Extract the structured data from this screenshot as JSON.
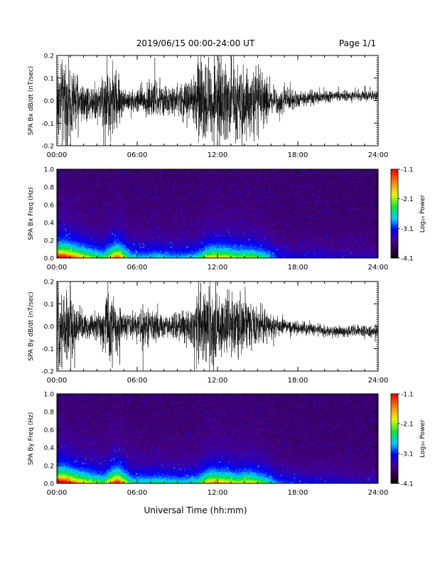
{
  "header": {
    "title": "2019/06/15  00:00-24:00 UT",
    "page": "Page 1/1"
  },
  "footer": {
    "xlabel": "Universal Time (hh:mm)"
  },
  "colorbar": {
    "label": "Log₁₀ Power",
    "ticks": [
      "-1.1",
      "-2.1",
      "-3.1",
      "-4.1"
    ]
  },
  "chart_data": [
    {
      "type": "line",
      "ylabel": "SPA Bx dB/dt (nT/sec)",
      "xlabel": "",
      "xlim": [
        0,
        24
      ],
      "ylim": [
        -0.2,
        0.2
      ],
      "x_ticks": [
        "00:00",
        "06:00",
        "12:00",
        "18:00",
        "24:00"
      ],
      "y_ticks": [
        "-0.2",
        "-0.1",
        "0.0",
        "0.1",
        "0.2"
      ],
      "series": [
        {
          "x": [
            0,
            0.5,
            1,
            1.5,
            2,
            2.5,
            3,
            3.5,
            4,
            4.5,
            5,
            5.5,
            6,
            6.5,
            7,
            7.5,
            8,
            8.5,
            9,
            9.5,
            10,
            10.5,
            11,
            11.5,
            12,
            12.5,
            13,
            13.5,
            14,
            14.5,
            15,
            15.5,
            16,
            16.5,
            17,
            17.5,
            18,
            18.5,
            19,
            19.5,
            20,
            20.5,
            21,
            21.5,
            22,
            22.5,
            23,
            23.5,
            24
          ],
          "amplitude": [
            0.2,
            0.2,
            0.2,
            0.15,
            0.1,
            0.08,
            0.1,
            0.15,
            0.2,
            0.15,
            0.06,
            0.05,
            0.07,
            0.08,
            0.1,
            0.09,
            0.07,
            0.07,
            0.08,
            0.1,
            0.12,
            0.2,
            0.2,
            0.2,
            0.2,
            0.18,
            0.19,
            0.2,
            0.18,
            0.17,
            0.16,
            0.12,
            0.08,
            0.07,
            0.06,
            0.05,
            0.045,
            0.04,
            0.035,
            0.035,
            0.03,
            0.03,
            0.028,
            0.025,
            0.025,
            0.025,
            0.025,
            0.025,
            0.025
          ],
          "offset": [
            0,
            0,
            0,
            0,
            0,
            0,
            0,
            0,
            0,
            0,
            0,
            0,
            0,
            0,
            0,
            0,
            0,
            0,
            0,
            0,
            0,
            0,
            0,
            0,
            0,
            0,
            0,
            0,
            0,
            0,
            0,
            0,
            0,
            0,
            0,
            0.005,
            0.008,
            0.01,
            0.012,
            0.012,
            0.015,
            0.018,
            0.018,
            0.02,
            0.02,
            0.022,
            0.022,
            0.022,
            0.022
          ]
        }
      ]
    },
    {
      "type": "heatmap",
      "ylabel": "SPA Bx Freq (Hz)",
      "xlabel": "",
      "xlim": [
        0,
        24
      ],
      "ylim": [
        0.0,
        1.0
      ],
      "x_ticks": [
        "00:00",
        "06:00",
        "12:00",
        "18:00",
        "24:00"
      ],
      "y_ticks": [
        "0.0",
        "0.2",
        "0.4",
        "0.6",
        "0.8",
        "1.0"
      ],
      "zlim": [
        -4.1,
        -1.1
      ],
      "activity_by_hour": [
        0.9,
        0.7,
        0.5,
        0.4,
        0.8,
        0.35,
        0.3,
        0.35,
        0.3,
        0.3,
        0.35,
        0.6,
        0.6,
        0.5,
        0.5,
        0.4,
        0.2,
        0.15,
        0.15,
        0.15,
        0.12,
        0.12,
        0.1,
        0.1
      ]
    },
    {
      "type": "line",
      "ylabel": "SPA By dB/dt (nT/sec)",
      "xlabel": "",
      "xlim": [
        0,
        24
      ],
      "ylim": [
        -0.2,
        0.2
      ],
      "x_ticks": [
        "00:00",
        "06:00",
        "12:00",
        "18:00",
        "24:00"
      ],
      "y_ticks": [
        "-0.2",
        "-0.1",
        "0.0",
        "0.1",
        "0.2"
      ],
      "series": [
        {
          "x": [
            0,
            0.5,
            1,
            1.5,
            2,
            2.5,
            3,
            3.5,
            4,
            4.5,
            5,
            5.5,
            6,
            6.5,
            7,
            7.5,
            8,
            8.5,
            9,
            9.5,
            10,
            10.5,
            11,
            11.5,
            12,
            12.5,
            13,
            13.5,
            14,
            14.5,
            15,
            15.5,
            16,
            16.5,
            17,
            17.5,
            18,
            18.5,
            19,
            19.5,
            20,
            20.5,
            21,
            21.5,
            22,
            22.5,
            23,
            23.5,
            24
          ],
          "amplitude": [
            0.2,
            0.2,
            0.2,
            0.1,
            0.07,
            0.06,
            0.07,
            0.12,
            0.2,
            0.12,
            0.06,
            0.06,
            0.08,
            0.1,
            0.08,
            0.07,
            0.06,
            0.06,
            0.07,
            0.08,
            0.1,
            0.2,
            0.2,
            0.2,
            0.17,
            0.15,
            0.15,
            0.16,
            0.13,
            0.12,
            0.11,
            0.09,
            0.06,
            0.05,
            0.045,
            0.04,
            0.035,
            0.035,
            0.03,
            0.03,
            0.03,
            0.03,
            0.03,
            0.03,
            0.03,
            0.03,
            0.03,
            0.03,
            0.03
          ],
          "offset": [
            0,
            0,
            0,
            0,
            0,
            0,
            0,
            0,
            0,
            0,
            0,
            0,
            0,
            0,
            0,
            0,
            0,
            0,
            0,
            0,
            0,
            0,
            0,
            0,
            0,
            0,
            0,
            0,
            0,
            0,
            0,
            0,
            0,
            0,
            0,
            -0.005,
            -0.01,
            -0.012,
            -0.015,
            -0.018,
            -0.02,
            -0.022,
            -0.022,
            -0.022,
            -0.022,
            -0.022,
            -0.022,
            -0.022,
            -0.022
          ]
        }
      ]
    },
    {
      "type": "heatmap",
      "ylabel": "SPA By Freq (Hz)",
      "xlabel": "",
      "xlim": [
        0,
        24
      ],
      "ylim": [
        0.0,
        1.0
      ],
      "x_ticks": [
        "00:00",
        "06:00",
        "12:00",
        "18:00",
        "24:00"
      ],
      "y_ticks": [
        "0.0",
        "0.2",
        "0.4",
        "0.6",
        "0.8",
        "1.0"
      ],
      "zlim": [
        -4.1,
        -1.1
      ],
      "activity_by_hour": [
        0.95,
        0.7,
        0.55,
        0.45,
        0.9,
        0.4,
        0.35,
        0.4,
        0.35,
        0.35,
        0.4,
        0.7,
        0.65,
        0.55,
        0.6,
        0.45,
        0.25,
        0.2,
        0.18,
        0.16,
        0.15,
        0.14,
        0.12,
        0.12
      ]
    }
  ]
}
